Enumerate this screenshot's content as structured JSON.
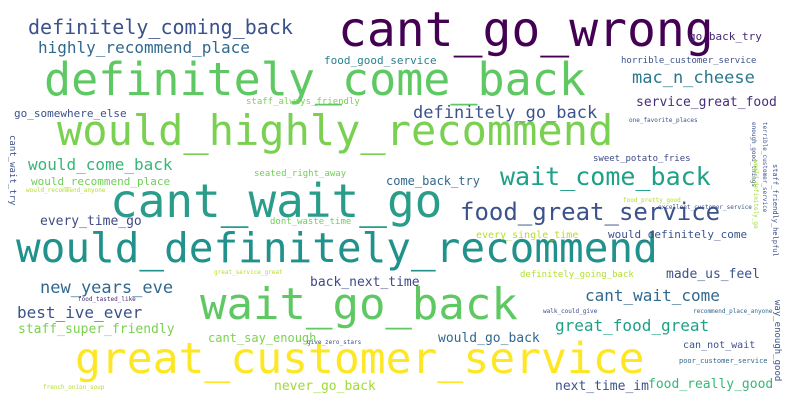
{
  "words": [
    {
      "text": "cant_go_wrong",
      "color": "#440154"
    },
    {
      "text": "definitely_come_back",
      "color": "#5ec962"
    },
    {
      "text": "would_highly_recommend",
      "color": "#7ad151"
    },
    {
      "text": "cant_wait_go",
      "color": "#2a9d8a"
    },
    {
      "text": "would_definitely_recommend",
      "color": "#21918c"
    },
    {
      "text": "wait_go_back",
      "color": "#5ec962"
    },
    {
      "text": "great_customer_service",
      "color": "#fde725"
    },
    {
      "text": "definitely_coming_back",
      "color": "#3b528b"
    },
    {
      "text": "highly_recommend_place",
      "color": "#31688e"
    },
    {
      "text": "go_back_try",
      "color": "#482878"
    },
    {
      "text": "food_good_service",
      "color": "#26828e"
    },
    {
      "text": "horrible_customer_service",
      "color": "#3b528b"
    },
    {
      "text": "mac_n_cheese",
      "color": "#2a788e"
    },
    {
      "text": "definitely_go_back",
      "color": "#3b528b"
    },
    {
      "text": "service_great_food",
      "color": "#472c7a"
    },
    {
      "text": "go_somewhere_else",
      "color": "#3b528b"
    },
    {
      "text": "staff_always_friendly",
      "color": "#7ad151"
    },
    {
      "text": "wait_come_back",
      "color": "#1fa187"
    },
    {
      "text": "would_come_back",
      "color": "#35b779"
    },
    {
      "text": "would_recommend_place",
      "color": "#6ece58"
    },
    {
      "text": "seated_right_away",
      "color": "#6ece58"
    },
    {
      "text": "come_back_try",
      "color": "#31688e"
    },
    {
      "text": "sweet_potato_fries",
      "color": "#3e4989"
    },
    {
      "text": "food_great_service",
      "color": "#3b528b"
    },
    {
      "text": "every_time_go",
      "color": "#3e4989"
    },
    {
      "text": "dont_waste_time",
      "color": "#6ece58"
    },
    {
      "text": "every_single_time",
      "color": "#b5de2b"
    },
    {
      "text": "would_definitely_come",
      "color": "#3b528b"
    },
    {
      "text": "new_years_eve",
      "color": "#31688e"
    },
    {
      "text": "back_next_time",
      "color": "#3e4989"
    },
    {
      "text": "definitely_going_back",
      "color": "#b5de2b"
    },
    {
      "text": "made_us_feel",
      "color": "#3b528b"
    },
    {
      "text": "best_ive_ever",
      "color": "#3b528b"
    },
    {
      "text": "cant_wait_come",
      "color": "#31688e"
    },
    {
      "text": "staff_super_friendly",
      "color": "#7ad151"
    },
    {
      "text": "great_food_great",
      "color": "#1fa187"
    },
    {
      "text": "cant_say_enough",
      "color": "#7ad151"
    },
    {
      "text": "would_go_back",
      "color": "#31688e"
    },
    {
      "text": "can_not_wait",
      "color": "#3b528b"
    },
    {
      "text": "never_go_back",
      "color": "#a0da39"
    },
    {
      "text": "next_time_im",
      "color": "#3b528b"
    },
    {
      "text": "food_really_good",
      "color": "#35b779"
    },
    {
      "text": "one_favorite_places",
      "color": "#3b528b"
    },
    {
      "text": "would_recommend_anyone",
      "color": "#b5de2b"
    },
    {
      "text": "food_pretty_good",
      "color": "#b5de2b"
    },
    {
      "text": "great_service_great",
      "color": "#b5de2b"
    },
    {
      "text": "food_tasted_like",
      "color": "#482878"
    },
    {
      "text": "walk_could_give",
      "color": "#3e4989"
    },
    {
      "text": "recommend_place_anyone",
      "color": "#31688e"
    },
    {
      "text": "give_zero_stars",
      "color": "#3b528b"
    },
    {
      "text": "poor_customer_service",
      "color": "#31688e"
    },
    {
      "text": "french_onion_soup",
      "color": "#b5de2b"
    },
    {
      "text": "cant_wait_try",
      "color": "#3b528b"
    },
    {
      "text": "enough_good_things",
      "color": "#3b528b"
    },
    {
      "text": "terrible_customer_service",
      "color": "#3b528b"
    },
    {
      "text": "would_definitely_go",
      "color": "#a0da39"
    },
    {
      "text": "staff_friendly_helpful",
      "color": "#3b528b"
    },
    {
      "text": "excellent_customer_service",
      "color": "#3b528b"
    },
    {
      "text": "way_enough_good",
      "color": "#3b528b"
    }
  ]
}
